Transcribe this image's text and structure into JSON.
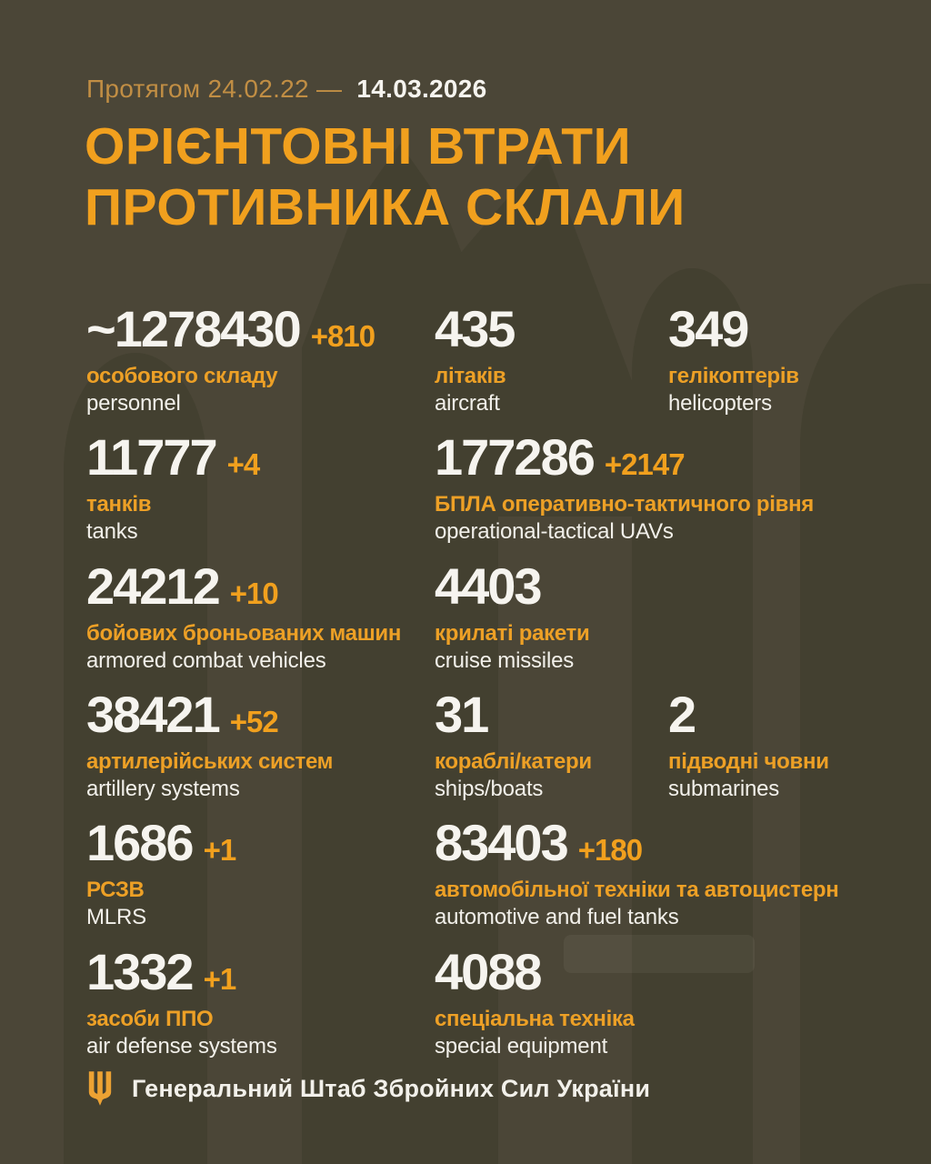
{
  "header": {
    "period_prefix": "Протягом 24.02.22 —",
    "period_date": "14.03.2026",
    "title_line1": "ОРІЄНТОВНІ ВТРАТИ",
    "title_line2": "ПРОТИВНИКА СКЛАЛИ"
  },
  "rows": [
    [
      {
        "value": "~1278430",
        "delta": "+810",
        "label_uk": "особового складу",
        "label_en": "personnel"
      },
      {
        "value": "435",
        "delta": "",
        "label_uk": "літаків",
        "label_en": "aircraft"
      },
      {
        "value": "349",
        "delta": "",
        "label_uk": "гелікоптерів",
        "label_en": "helicopters"
      }
    ],
    [
      {
        "value": "11777",
        "delta": "+4",
        "label_uk": "танків",
        "label_en": "tanks"
      },
      {
        "value": "177286",
        "delta": "+2147",
        "label_uk": "БПЛА оперативно-тактичного рівня",
        "label_en": "operational-tactical UAVs"
      }
    ],
    [
      {
        "value": "24212",
        "delta": "+10",
        "label_uk": "бойових броньованих машин",
        "label_en": "armored combat vehicles"
      },
      {
        "value": "4403",
        "delta": "",
        "label_uk": "крилаті ракети",
        "label_en": "cruise missiles"
      }
    ],
    [
      {
        "value": "38421",
        "delta": "+52",
        "label_uk": "артилерійських систем",
        "label_en": "artillery systems"
      },
      {
        "value": "31",
        "delta": "",
        "label_uk": "кораблі/катери",
        "label_en": "ships/boats"
      },
      {
        "value": "2",
        "delta": "",
        "label_uk": "підводні човни",
        "label_en": "submarines"
      }
    ],
    [
      {
        "value": "1686",
        "delta": "+1",
        "label_uk": "РСЗВ",
        "label_en": "MLRS"
      },
      {
        "value": "83403",
        "delta": "+180",
        "label_uk": "автомобільної техніки та автоцистерн",
        "label_en": "automotive and fuel tanks"
      }
    ],
    [
      {
        "value": "1332",
        "delta": "+1",
        "label_uk": "засоби ППО",
        "label_en": "air defense systems"
      },
      {
        "value": "4088",
        "delta": "",
        "label_uk": "спеціальна техніка",
        "label_en": "special equipment"
      }
    ]
  ],
  "footer": {
    "source": "Генеральний Штаб Збройних Сил України",
    "icon": "trident-icon"
  },
  "colors": {
    "background": "#4B4637",
    "watermark": "#434030",
    "accent_orange": "#F1A01E",
    "muted_gold": "#C18E44",
    "text_white": "#F6F4EF"
  }
}
